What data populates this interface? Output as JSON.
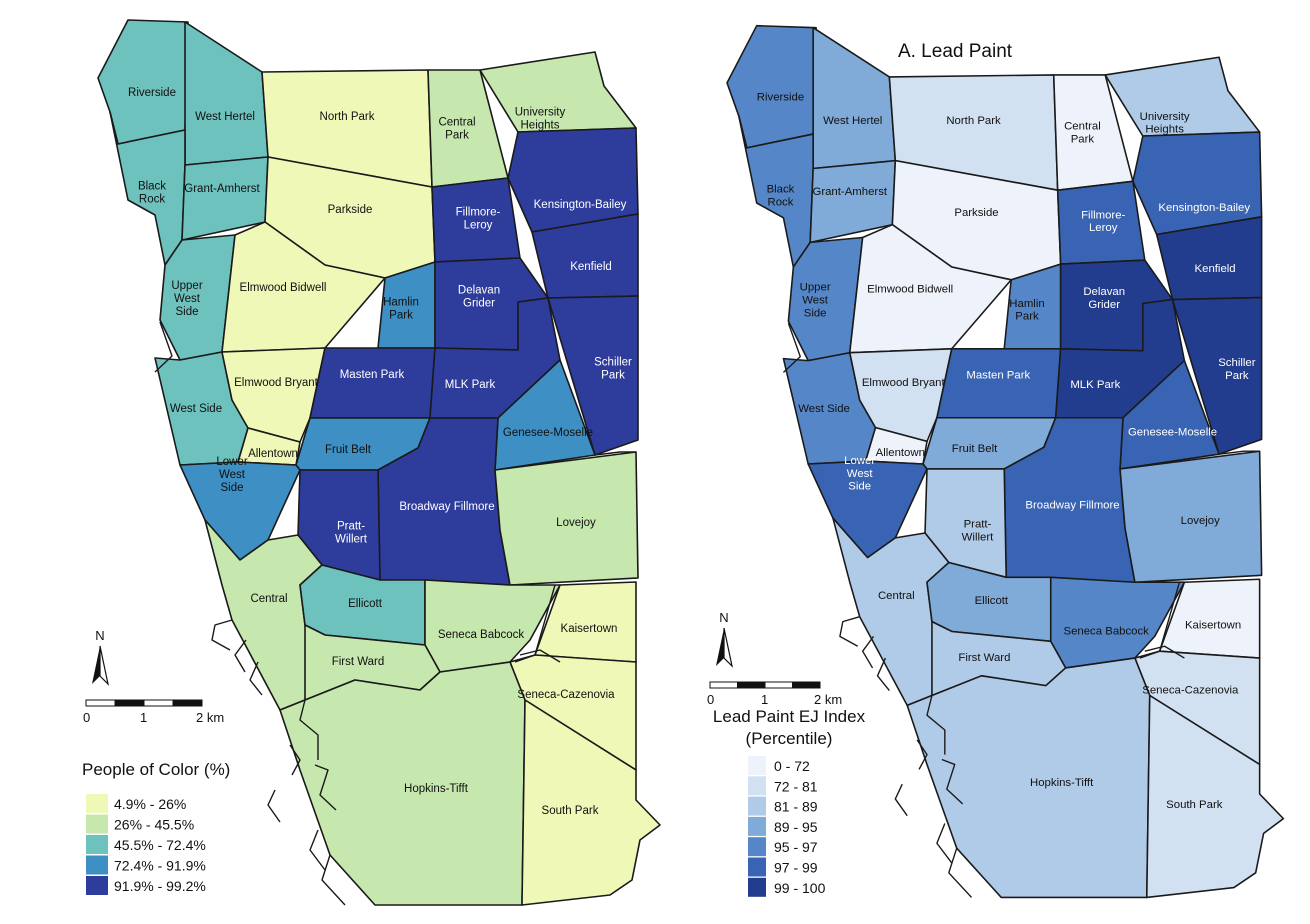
{
  "left_map": {
    "legend_title": "People of Color (%)",
    "classes": [
      {
        "label": "4.9% - 26%",
        "color": "#f0f8b8"
      },
      {
        "label": "26% - 45.5%",
        "color": "#c6e7ad"
      },
      {
        "label": "45.5% - 72.4%",
        "color": "#6ec2be"
      },
      {
        "label": "72.4% - 91.9%",
        "color": "#3d8fc4"
      },
      {
        "label": "91.9% -  99.2%",
        "color": "#2e3c9c"
      }
    ],
    "scale": {
      "t0": "0",
      "t1": "1",
      "t2": "2 km"
    },
    "north": "N",
    "neighborhoods": {
      "riverside": {
        "name": "Riverside",
        "cls": 2
      },
      "west_hertel": {
        "name": "West Hertel",
        "cls": 2
      },
      "north_park": {
        "name": "North Park",
        "cls": 0
      },
      "central_park": {
        "name": "Central Park",
        "cls": 1
      },
      "university_heights": {
        "name": "University Heights",
        "cls": 1
      },
      "black_rock": {
        "name": "Black Rock",
        "cls": 2
      },
      "grant_amherst": {
        "name": "Grant-Amherst",
        "cls": 2
      },
      "parkside": {
        "name": "Parkside",
        "cls": 0
      },
      "fillmore_leroy": {
        "name": "Fillmore-Leroy",
        "cls": 4
      },
      "kensington_bailey": {
        "name": "Kensington-Bailey",
        "cls": 4
      },
      "kenfield": {
        "name": "Kenfield",
        "cls": 4
      },
      "upper_west_side": {
        "name": "Upper West Side",
        "cls": 2
      },
      "elmwood_bidwell": {
        "name": "Elmwood Bidwell",
        "cls": 0
      },
      "hamlin_park": {
        "name": "Hamlin Park",
        "cls": 3
      },
      "delavan_grider": {
        "name": "Delavan Grider",
        "cls": 4
      },
      "schiller_park": {
        "name": "Schiller Park",
        "cls": 4
      },
      "west_side": {
        "name": "West Side",
        "cls": 2
      },
      "elmwood_bryant": {
        "name": "Elmwood Bryant",
        "cls": 0
      },
      "masten_park": {
        "name": "Masten Park",
        "cls": 4
      },
      "mlk_park": {
        "name": "MLK Park",
        "cls": 4
      },
      "genesee_moselle": {
        "name": "Genesee-Moselle",
        "cls": 3
      },
      "allentown": {
        "name": "Allentown",
        "cls": 0
      },
      "fruit_belt": {
        "name": "Fruit Belt",
        "cls": 3
      },
      "lower_west_side": {
        "name": "Lower West Side",
        "cls": 3
      },
      "broadway_fillmore": {
        "name": "Broadway Fillmore",
        "cls": 4
      },
      "lovejoy": {
        "name": "Lovejoy",
        "cls": 1
      },
      "pratt_willert": {
        "name": "Pratt-Willert",
        "cls": 4
      },
      "central": {
        "name": "Central",
        "cls": 1
      },
      "ellicott": {
        "name": "Ellicott",
        "cls": 2
      },
      "seneca_babcock": {
        "name": "Seneca Babcock",
        "cls": 1
      },
      "kaisertown": {
        "name": "Kaisertown",
        "cls": 0
      },
      "first_ward": {
        "name": "First Ward",
        "cls": 1
      },
      "seneca_cazenovia": {
        "name": "Seneca-Cazenovia",
        "cls": 0
      },
      "hopkins_tifft": {
        "name": "Hopkins-Tifft",
        "cls": 1
      },
      "south_park": {
        "name": "South Park",
        "cls": 0
      }
    }
  },
  "right_map": {
    "title": "A. Lead Paint",
    "legend_title_1": "Lead Paint EJ Index",
    "legend_title_2": "(Percentile)",
    "classes": [
      {
        "label": "0 - 72",
        "color": "#eef3fb"
      },
      {
        "label": "72 - 81",
        "color": "#d2e1f1"
      },
      {
        "label": "81 - 89",
        "color": "#b0cbe7"
      },
      {
        "label": "89 - 95",
        "color": "#80aad8"
      },
      {
        "label": "95 - 97",
        "color": "#5586c8"
      },
      {
        "label": "97 - 99",
        "color": "#3963b3"
      },
      {
        "label": "99 - 100",
        "color": "#233d8e"
      }
    ],
    "scale": {
      "t0": "0",
      "t1": "1",
      "t2": "2 km"
    },
    "north": "N",
    "neighborhoods": {
      "riverside": {
        "name": "Riverside",
        "cls": 4
      },
      "west_hertel": {
        "name": "West Hertel",
        "cls": 3
      },
      "north_park": {
        "name": "North Park",
        "cls": 1
      },
      "central_park": {
        "name": "Central Park",
        "cls": 0
      },
      "university_heights": {
        "name": "University Heights",
        "cls": 2
      },
      "black_rock": {
        "name": "Black Rock",
        "cls": 4
      },
      "grant_amherst": {
        "name": "Grant-Amherst",
        "cls": 3
      },
      "parkside": {
        "name": "Parkside",
        "cls": 0
      },
      "fillmore_leroy": {
        "name": "Fillmore-Leroy",
        "cls": 5
      },
      "kensington_bailey": {
        "name": "Kensington-Bailey",
        "cls": 5
      },
      "kenfield": {
        "name": "Kenfield",
        "cls": 6
      },
      "upper_west_side": {
        "name": "Upper West Side",
        "cls": 4
      },
      "elmwood_bidwell": {
        "name": "Elmwood Bidwell",
        "cls": 0
      },
      "hamlin_park": {
        "name": "Hamlin Park",
        "cls": 4
      },
      "delavan_grider": {
        "name": "Delavan Grider",
        "cls": 6
      },
      "schiller_park": {
        "name": "Schiller Park",
        "cls": 6
      },
      "west_side": {
        "name": "West Side",
        "cls": 4
      },
      "elmwood_bryant": {
        "name": "Elmwood Bryant",
        "cls": 1
      },
      "masten_park": {
        "name": "Masten Park",
        "cls": 5
      },
      "mlk_park": {
        "name": "MLK Park",
        "cls": 6
      },
      "genesee_moselle": {
        "name": "Genesee-Moselle",
        "cls": 5
      },
      "allentown": {
        "name": "Allentown",
        "cls": 0
      },
      "fruit_belt": {
        "name": "Fruit Belt",
        "cls": 3
      },
      "lower_west_side": {
        "name": "Lower West Side",
        "cls": 5
      },
      "broadway_fillmore": {
        "name": "Broadway Fillmore",
        "cls": 5
      },
      "lovejoy": {
        "name": "Lovejoy",
        "cls": 3
      },
      "pratt_willert": {
        "name": "Pratt-Willert",
        "cls": 2
      },
      "central": {
        "name": "Central",
        "cls": 2
      },
      "ellicott": {
        "name": "Ellicott",
        "cls": 3
      },
      "seneca_babcock": {
        "name": "Seneca Babcock",
        "cls": 4
      },
      "kaisertown": {
        "name": "Kaisertown",
        "cls": 0
      },
      "first_ward": {
        "name": "First Ward",
        "cls": 2
      },
      "seneca_cazenovia": {
        "name": "Seneca-Cazenovia",
        "cls": 1
      },
      "hopkins_tifft": {
        "name": "Hopkins-Tifft",
        "cls": 2
      },
      "south_park": {
        "name": "South Park",
        "cls": 1
      }
    }
  }
}
